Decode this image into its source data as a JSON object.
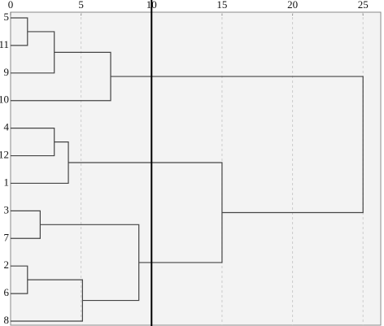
{
  "chart_data": {
    "type": "dendrogram",
    "leaves": [
      "5",
      "11",
      "9",
      "10",
      "4",
      "12",
      "1",
      "3",
      "7",
      "2",
      "6",
      "8"
    ],
    "merges": [
      {
        "left": 0,
        "right": 1,
        "height": 1.2
      },
      {
        "left": 12,
        "right": 2,
        "height": 3.1
      },
      {
        "left": 13,
        "right": 3,
        "height": 7.1
      },
      {
        "left": 4,
        "right": 5,
        "height": 3.1
      },
      {
        "left": 15,
        "right": 6,
        "height": 4.1
      },
      {
        "left": 7,
        "right": 8,
        "height": 2.1
      },
      {
        "left": 9,
        "right": 10,
        "height": 1.2
      },
      {
        "left": 18,
        "right": 11,
        "height": 5.1
      },
      {
        "left": 17,
        "right": 19,
        "height": 9.1
      },
      {
        "left": 16,
        "right": 20,
        "height": 15
      },
      {
        "left": 14,
        "right": 21,
        "height": 25
      }
    ],
    "xlim": [
      0,
      26.2
    ],
    "xticks": [
      0,
      5,
      10,
      15,
      20,
      25
    ],
    "grid": true,
    "cutoff": 10,
    "color": "#444444",
    "cutoff_color": "#000000"
  }
}
